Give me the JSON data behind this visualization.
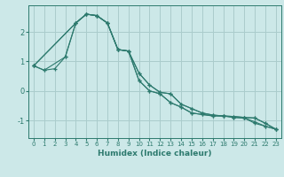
{
  "xlabel": "Humidex (Indice chaleur)",
  "background_color": "#cce8e8",
  "grid_color": "#aacccc",
  "line_color": "#2d7a6e",
  "xlim": [
    -0.5,
    23.5
  ],
  "ylim": [
    -1.6,
    2.9
  ],
  "yticks": [
    -1,
    0,
    1,
    2
  ],
  "xticks": [
    0,
    1,
    2,
    3,
    4,
    5,
    6,
    7,
    8,
    9,
    10,
    11,
    12,
    13,
    14,
    15,
    16,
    17,
    18,
    19,
    20,
    21,
    22,
    23
  ],
  "lines": [
    {
      "x": [
        0,
        1,
        3,
        4,
        5,
        6,
        7,
        8,
        9,
        10,
        11,
        12,
        13,
        14,
        15,
        16,
        17,
        18,
        19,
        20,
        21,
        22,
        23
      ],
      "y": [
        0.85,
        0.7,
        1.15,
        2.3,
        2.6,
        2.55,
        2.3,
        1.4,
        1.35,
        0.35,
        0.0,
        -0.1,
        -0.4,
        -0.55,
        -0.75,
        -0.8,
        -0.85,
        -0.85,
        -0.9,
        -0.92,
        -1.1,
        -1.2,
        -1.3
      ]
    },
    {
      "x": [
        0,
        4,
        5,
        6,
        7,
        8,
        9,
        10,
        11,
        12,
        13,
        14,
        15,
        16,
        17,
        18,
        19,
        20,
        21,
        22,
        23
      ],
      "y": [
        0.85,
        2.3,
        2.6,
        2.55,
        2.3,
        1.4,
        1.35,
        0.6,
        0.2,
        -0.05,
        -0.1,
        -0.45,
        -0.6,
        -0.75,
        -0.82,
        -0.85,
        -0.87,
        -0.9,
        -0.92,
        -1.1,
        -1.3
      ]
    },
    {
      "x": [
        0,
        4,
        5,
        6,
        7,
        8,
        9,
        10,
        11,
        12,
        13,
        14,
        15,
        16,
        17,
        18,
        19,
        20,
        21,
        22,
        23
      ],
      "y": [
        0.85,
        2.3,
        2.6,
        2.55,
        2.3,
        1.4,
        1.35,
        0.35,
        0.0,
        -0.1,
        -0.4,
        -0.55,
        -0.75,
        -0.8,
        -0.85,
        -0.85,
        -0.9,
        -0.92,
        -1.05,
        -1.2,
        -1.3
      ]
    },
    {
      "x": [
        0,
        1,
        2,
        3,
        4,
        5,
        6,
        7,
        8,
        9,
        10,
        11,
        12,
        13,
        14,
        15,
        16,
        17,
        18,
        19,
        20,
        21,
        22,
        23
      ],
      "y": [
        0.85,
        0.7,
        0.75,
        1.15,
        2.3,
        2.6,
        2.55,
        2.3,
        1.4,
        1.35,
        0.6,
        0.2,
        -0.05,
        -0.1,
        -0.45,
        -0.6,
        -0.75,
        -0.82,
        -0.85,
        -0.87,
        -0.9,
        -0.92,
        -1.1,
        -1.3
      ]
    }
  ]
}
